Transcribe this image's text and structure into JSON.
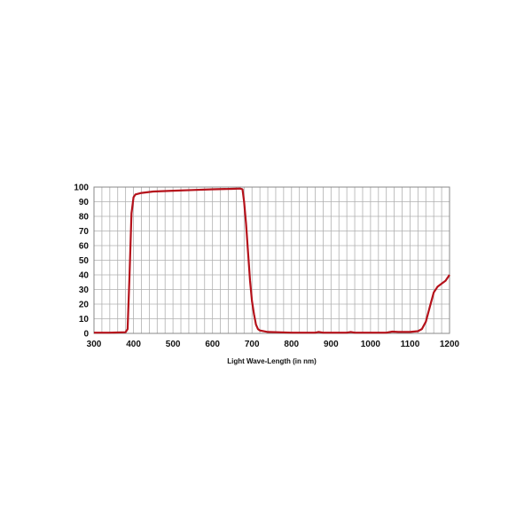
{
  "chart_data": {
    "type": "line",
    "title": "",
    "xlabel": "Light Wave-Length (in nm)",
    "ylabel": "",
    "xlim": [
      300,
      1200
    ],
    "ylim": [
      0,
      100
    ],
    "xticks": [
      300,
      400,
      500,
      600,
      700,
      800,
      900,
      1000,
      1100,
      1200
    ],
    "yticks": [
      0,
      10,
      20,
      30,
      40,
      50,
      60,
      70,
      80,
      90,
      100
    ],
    "x_minor_grid_step": 20,
    "y_grid_step": 10,
    "grid": true,
    "line_color": "#b5121b",
    "grid_color": "#b0b0b0",
    "series": [
      {
        "x": [
          300,
          340,
          380,
          385,
          390,
          395,
          400,
          405,
          420,
          450,
          500,
          550,
          600,
          650,
          670,
          676,
          680,
          685,
          690,
          695,
          700,
          705,
          710,
          715,
          720,
          740,
          800,
          860,
          868,
          880,
          940,
          950,
          960,
          1040,
          1055,
          1070,
          1100,
          1120,
          1130,
          1140,
          1150,
          1160,
          1170,
          1180,
          1190,
          1200
        ],
        "y": [
          0.5,
          0.5,
          0.8,
          3,
          40,
          82,
          93,
          95,
          96,
          97,
          97.5,
          98,
          98.5,
          98.8,
          99,
          98.5,
          90,
          75,
          55,
          36,
          22,
          13,
          6,
          3,
          2,
          1,
          0.5,
          0.5,
          1,
          0.5,
          0.5,
          1,
          0.5,
          0.5,
          1.2,
          1,
          1,
          1.5,
          3,
          8,
          18,
          28,
          32,
          34,
          36,
          40
        ]
      }
    ]
  }
}
